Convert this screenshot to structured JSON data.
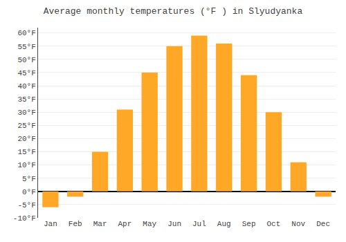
{
  "chart_data": {
    "type": "bar",
    "title": "Average monthly temperatures (°F ) in Slyudyanka",
    "categories": [
      "Jan",
      "Feb",
      "Mar",
      "Apr",
      "May",
      "Jun",
      "Jul",
      "Aug",
      "Sep",
      "Oct",
      "Nov",
      "Dec"
    ],
    "values": [
      -6,
      -2,
      15,
      31,
      45,
      55,
      59,
      56,
      44,
      30,
      11,
      -2
    ],
    "color": "#FFA726",
    "ylim": [
      -10,
      62
    ],
    "yticks": [
      {
        "value": -10,
        "label": "-10°F"
      },
      {
        "value": -5,
        "label": "-5°F"
      },
      {
        "value": 0,
        "label": "0°F"
      },
      {
        "value": 5,
        "label": "5°F"
      },
      {
        "value": 10,
        "label": "10°F"
      },
      {
        "value": 15,
        "label": "15°F"
      },
      {
        "value": 20,
        "label": "20°F"
      },
      {
        "value": 25,
        "label": "25°F"
      },
      {
        "value": 30,
        "label": "30°F"
      },
      {
        "value": 35,
        "label": "35°F"
      },
      {
        "value": 40,
        "label": "40°F"
      },
      {
        "value": 45,
        "label": "45°F"
      },
      {
        "value": 50,
        "label": "50°F"
      },
      {
        "value": 55,
        "label": "55°F"
      },
      {
        "value": 60,
        "label": "60°F"
      }
    ],
    "grid": true
  }
}
